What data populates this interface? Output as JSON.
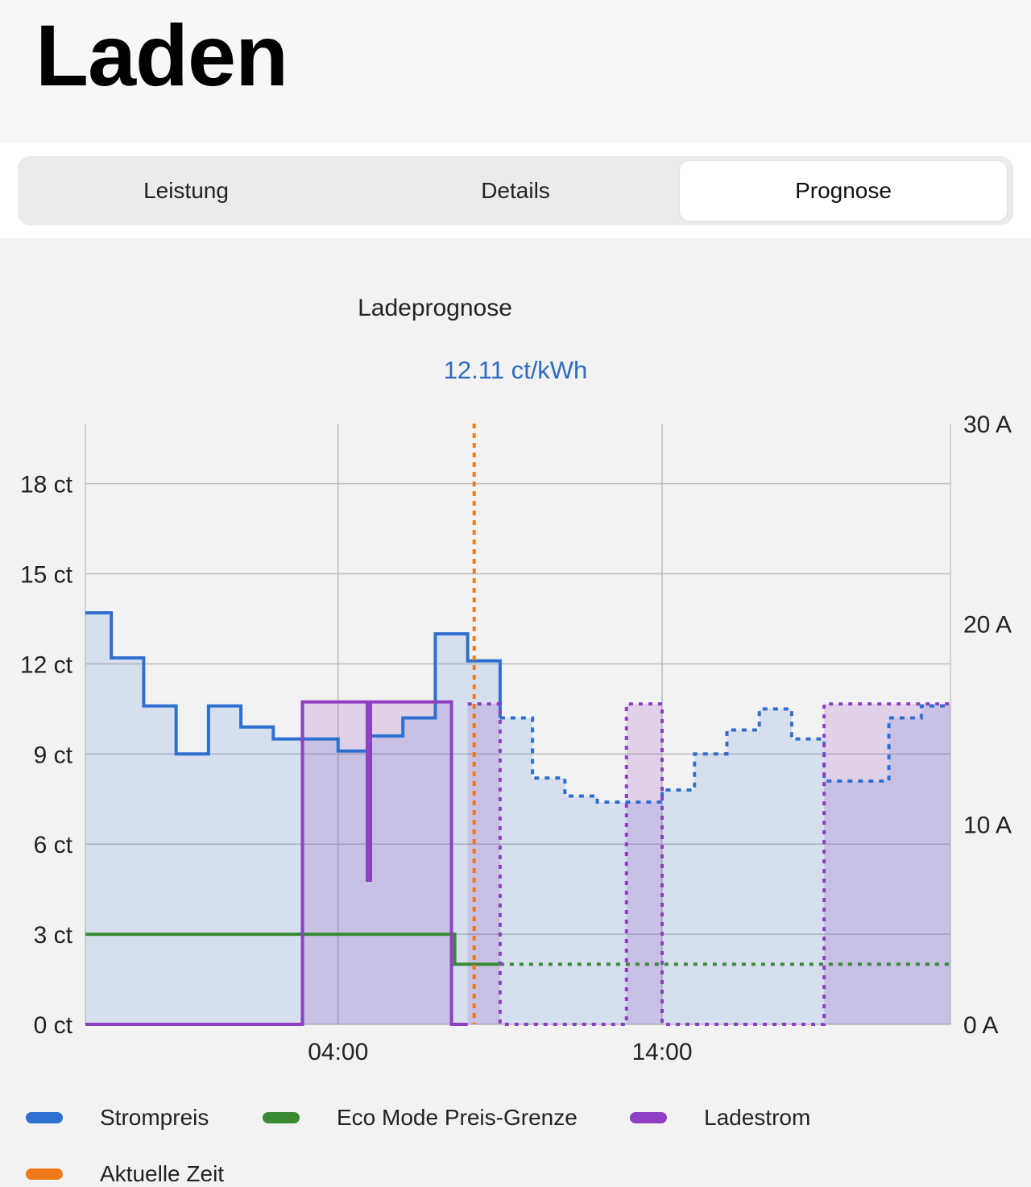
{
  "header": {
    "title": "Laden"
  },
  "tabs": [
    {
      "label": "Leistung",
      "active": false
    },
    {
      "label": "Details",
      "active": false
    },
    {
      "label": "Prognose",
      "active": true
    }
  ],
  "chart": {
    "title": "Ladeprognose",
    "subtitle": "12.11 ct/kWh"
  },
  "legend": [
    {
      "label": "Strompreis",
      "color": "#2f6fcf"
    },
    {
      "label": "Eco Mode Preis-Grenze",
      "color": "#3a8a35"
    },
    {
      "label": "Ladestrom",
      "color": "#8e3fc4"
    },
    {
      "label": "Aktuelle Zeit",
      "color": "#f07a1a"
    }
  ],
  "chart_data": {
    "type": "line",
    "title": "Ladeprognose",
    "subtitle": "12.11 ct/kWh",
    "x_ticks": [
      {
        "label": "04:00",
        "hour": 4
      },
      {
        "label": "14:00",
        "hour": 14
      }
    ],
    "xlim": [
      -3.8,
      22.9
    ],
    "y_left": {
      "ticks": [
        "0 ct",
        "3 ct",
        "6 ct",
        "9 ct",
        "12 ct",
        "15 ct",
        "18 ct"
      ],
      "values": [
        0,
        3,
        6,
        9,
        12,
        15,
        18
      ],
      "lim": [
        0,
        20
      ]
    },
    "y_right": {
      "ticks": [
        "0 A",
        "10 A",
        "20 A",
        "30 A"
      ],
      "values": [
        0,
        10,
        20,
        30
      ],
      "lim": [
        0,
        30
      ]
    },
    "grid": true,
    "current_time_hour": 8.2,
    "series": [
      {
        "name": "Strompreis",
        "axis": "left",
        "color": "#2f6fcf",
        "step": true,
        "actual": [
          [
            -3.8,
            13.7
          ],
          [
            -3.0,
            12.2
          ],
          [
            -2.0,
            10.6
          ],
          [
            -1.0,
            9.0
          ],
          [
            0.0,
            10.6
          ],
          [
            1.0,
            9.9
          ],
          [
            2.0,
            9.5
          ],
          [
            3.0,
            9.5
          ],
          [
            4.0,
            9.1
          ],
          [
            5.0,
            9.6
          ],
          [
            6.0,
            10.2
          ],
          [
            7.0,
            13.0
          ],
          [
            8.0,
            12.1
          ]
        ],
        "forecast": [
          [
            9.0,
            10.2
          ],
          [
            10.0,
            8.2
          ],
          [
            11.0,
            7.6
          ],
          [
            12.0,
            7.4
          ],
          [
            13.0,
            7.4
          ],
          [
            14.0,
            7.8
          ],
          [
            15.0,
            9.0
          ],
          [
            16.0,
            9.8
          ],
          [
            17.0,
            10.5
          ],
          [
            18.0,
            9.5
          ],
          [
            19.0,
            8.1
          ],
          [
            20.0,
            8.1
          ],
          [
            21.0,
            10.2
          ],
          [
            22.0,
            10.6
          ],
          [
            22.9,
            10.6
          ]
        ]
      },
      {
        "name": "Eco Mode Preis-Grenze",
        "axis": "left",
        "color": "#3a8a35",
        "step": true,
        "actual": [
          [
            -3.8,
            3.0
          ],
          [
            7.6,
            3.0
          ],
          [
            7.6,
            2.0
          ],
          [
            9.0,
            2.0
          ]
        ],
        "forecast": [
          [
            9.0,
            2.0
          ],
          [
            22.9,
            2.0
          ]
        ]
      },
      {
        "name": "Ladestrom",
        "axis": "right",
        "color": "#8e3fc4",
        "step": true,
        "actual": [
          [
            -3.8,
            0
          ],
          [
            2.9,
            0
          ],
          [
            2.9,
            16.1
          ],
          [
            4.9,
            16.1
          ],
          [
            4.9,
            7.2
          ],
          [
            5.0,
            16.1
          ],
          [
            7.5,
            16.1
          ],
          [
            7.5,
            0
          ],
          [
            8.0,
            0
          ]
        ],
        "forecast": [
          [
            8.0,
            16.0
          ],
          [
            9.0,
            16.0
          ],
          [
            9.0,
            0
          ],
          [
            12.9,
            0
          ],
          [
            12.9,
            16.0
          ],
          [
            14.0,
            16.0
          ],
          [
            14.0,
            0
          ],
          [
            19.0,
            0
          ],
          [
            19.0,
            16.0
          ],
          [
            22.9,
            16.0
          ]
        ]
      }
    ]
  }
}
